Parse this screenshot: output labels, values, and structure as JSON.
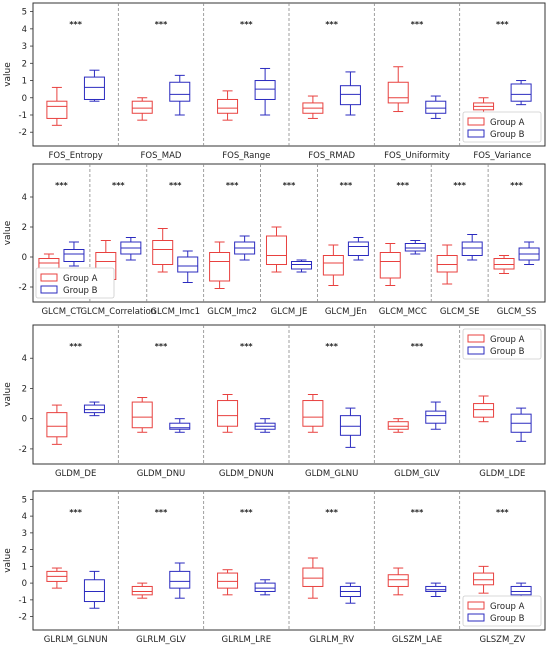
{
  "ylabel": "value",
  "legend": [
    {
      "name": "Group A",
      "color": "#e8413f"
    },
    {
      "name": "Group B",
      "color": "#2b2bbf"
    }
  ],
  "sig_label": "***",
  "chart_data": [
    {
      "type": "box",
      "ylabel": "value",
      "ylim": [
        -2.8,
        5.5
      ],
      "yticks": [
        -2,
        -1,
        0,
        1,
        2,
        3,
        4,
        5
      ],
      "legend_position": "lower-right",
      "categories": [
        "FOS_Entropy",
        "FOS_MAD",
        "FOS_Range",
        "FOS_RMAD",
        "FOS_Uniformity",
        "FOS_Variance"
      ],
      "significance": [
        "***",
        "***",
        "***",
        "***",
        "***",
        "***"
      ],
      "series": [
        {
          "name": "Group A",
          "boxes": [
            [
              -1.6,
              -1.2,
              -0.5,
              -0.2,
              0.6
            ],
            [
              -1.3,
              -0.9,
              -0.6,
              -0.2,
              0.0
            ],
            [
              -1.3,
              -0.9,
              -0.6,
              -0.1,
              0.4
            ],
            [
              -1.2,
              -0.9,
              -0.6,
              -0.3,
              0.1
            ],
            [
              -0.8,
              -0.3,
              0.0,
              0.9,
              1.8
            ],
            [
              -1.0,
              -0.7,
              -0.5,
              -0.3,
              0.0
            ]
          ]
        },
        {
          "name": "Group B",
          "boxes": [
            [
              -0.2,
              -0.1,
              0.6,
              1.2,
              1.6
            ],
            [
              -1.0,
              -0.2,
              0.2,
              0.9,
              1.3
            ],
            [
              -1.0,
              -0.1,
              0.5,
              1.0,
              1.7
            ],
            [
              -1.0,
              -0.4,
              0.2,
              0.7,
              1.5
            ],
            [
              -1.2,
              -0.9,
              -0.6,
              -0.2,
              0.1
            ],
            [
              -0.4,
              -0.2,
              0.2,
              0.8,
              1.0
            ]
          ]
        }
      ]
    },
    {
      "type": "box",
      "ylabel": "value",
      "ylim": [
        -3.0,
        6.2
      ],
      "yticks": [
        -2,
        0,
        2,
        4
      ],
      "legend_position": "lower-left",
      "categories": [
        "GLCM_CT",
        "GLCM_Correlation",
        "GLCM_Imc1",
        "GLCM_Imc2",
        "GLCM_JE",
        "GLCM_JEn",
        "GLCM_MCC",
        "GLCM_SE",
        "GLCM_SS"
      ],
      "significance": [
        "***",
        "***",
        "***",
        "***",
        "***",
        "***",
        "***",
        "***",
        "***"
      ],
      "series": [
        {
          "name": "Group A",
          "boxes": [
            [
              -1.0,
              -0.8,
              -0.4,
              -0.1,
              0.2
            ],
            [
              -1.9,
              -1.5,
              -0.3,
              0.3,
              1.1
            ],
            [
              -1.0,
              -0.5,
              0.5,
              1.1,
              1.9
            ],
            [
              -2.1,
              -1.6,
              -0.3,
              0.3,
              1.0
            ],
            [
              -1.0,
              -0.5,
              0.1,
              1.4,
              2.0
            ],
            [
              -1.9,
              -1.2,
              -0.4,
              0.1,
              0.8
            ],
            [
              -1.9,
              -1.4,
              -0.3,
              0.3,
              0.9
            ],
            [
              -1.8,
              -1.0,
              -0.5,
              0.1,
              0.8
            ],
            [
              -1.1,
              -0.8,
              -0.5,
              -0.1,
              0.1
            ]
          ]
        },
        {
          "name": "Group B",
          "boxes": [
            [
              -0.6,
              -0.3,
              0.2,
              0.5,
              1.0
            ],
            [
              -0.2,
              0.2,
              0.6,
              1.0,
              1.3
            ],
            [
              -1.7,
              -1.0,
              -0.6,
              0.0,
              0.4
            ],
            [
              -0.2,
              0.2,
              0.6,
              1.0,
              1.4
            ],
            [
              -1.0,
              -0.8,
              -0.5,
              -0.3,
              -0.2
            ],
            [
              -0.2,
              0.1,
              0.7,
              1.0,
              1.3
            ],
            [
              0.2,
              0.4,
              0.6,
              0.9,
              1.1
            ],
            [
              -0.2,
              0.1,
              0.6,
              1.0,
              1.5
            ],
            [
              -0.5,
              -0.2,
              0.2,
              0.6,
              1.0
            ]
          ]
        }
      ]
    },
    {
      "type": "box",
      "ylabel": "value",
      "ylim": [
        -3.0,
        6.2
      ],
      "yticks": [
        -2,
        0,
        2,
        4
      ],
      "legend_position": "top-right",
      "categories": [
        "GLDM_DE",
        "GLDM_DNU",
        "GLDM_DNUN",
        "GLDM_GLNU",
        "GLDM_GLV",
        "GLDM_LDE"
      ],
      "significance": [
        "***",
        "***",
        "***",
        "***",
        "***",
        ""
      ],
      "series": [
        {
          "name": "Group A",
          "boxes": [
            [
              -1.7,
              -1.2,
              -0.5,
              0.4,
              0.9
            ],
            [
              -0.9,
              -0.6,
              0.1,
              1.1,
              1.4
            ],
            [
              -0.9,
              -0.5,
              0.2,
              1.2,
              1.6
            ],
            [
              -0.9,
              -0.5,
              0.1,
              1.2,
              1.6
            ],
            [
              -0.9,
              -0.7,
              -0.5,
              -0.2,
              0.0
            ],
            [
              -0.2,
              0.1,
              0.6,
              1.0,
              1.5
            ]
          ]
        },
        {
          "name": "Group B",
          "boxes": [
            [
              0.2,
              0.4,
              0.6,
              0.9,
              1.1
            ],
            [
              -0.9,
              -0.7,
              -0.6,
              -0.3,
              0.0
            ],
            [
              -0.9,
              -0.7,
              -0.5,
              -0.3,
              0.0
            ],
            [
              -1.9,
              -1.1,
              -0.5,
              0.2,
              0.7
            ],
            [
              -0.7,
              -0.3,
              0.2,
              0.5,
              1.1
            ],
            [
              -1.5,
              -0.9,
              -0.3,
              0.3,
              0.7
            ]
          ]
        }
      ]
    },
    {
      "type": "box",
      "ylabel": "value",
      "ylim": [
        -2.8,
        5.5
      ],
      "yticks": [
        -2,
        -1,
        0,
        1,
        2,
        3,
        4,
        5
      ],
      "legend_position": "lower-right",
      "categories": [
        "GLRLM_GLNUN",
        "GLRLM_GLV",
        "GLRLM_LRE",
        "GLRLM_RV",
        "GLSZM_LAE",
        "GLSZM_ZV"
      ],
      "significance": [
        "***",
        "***",
        "***",
        "***",
        "***",
        "***"
      ],
      "series": [
        {
          "name": "Group A",
          "boxes": [
            [
              -0.3,
              0.1,
              0.4,
              0.7,
              0.9
            ],
            [
              -0.9,
              -0.7,
              -0.5,
              -0.2,
              0.0
            ],
            [
              -0.7,
              -0.3,
              0.1,
              0.6,
              0.8
            ],
            [
              -0.9,
              -0.2,
              0.3,
              0.9,
              1.5
            ],
            [
              -0.7,
              -0.2,
              0.2,
              0.5,
              0.9
            ],
            [
              -0.6,
              -0.1,
              0.2,
              0.6,
              1.0
            ]
          ]
        },
        {
          "name": "Group B",
          "boxes": [
            [
              -1.5,
              -1.1,
              -0.5,
              0.2,
              0.7
            ],
            [
              -0.9,
              -0.3,
              0.1,
              0.7,
              1.2
            ],
            [
              -0.7,
              -0.5,
              -0.3,
              0.0,
              0.2
            ],
            [
              -1.2,
              -0.8,
              -0.5,
              -0.2,
              0.0
            ],
            [
              -0.8,
              -0.5,
              -0.4,
              -0.2,
              0.0
            ],
            [
              -1.0,
              -0.7,
              -0.5,
              -0.2,
              0.0
            ]
          ]
        }
      ]
    }
  ]
}
